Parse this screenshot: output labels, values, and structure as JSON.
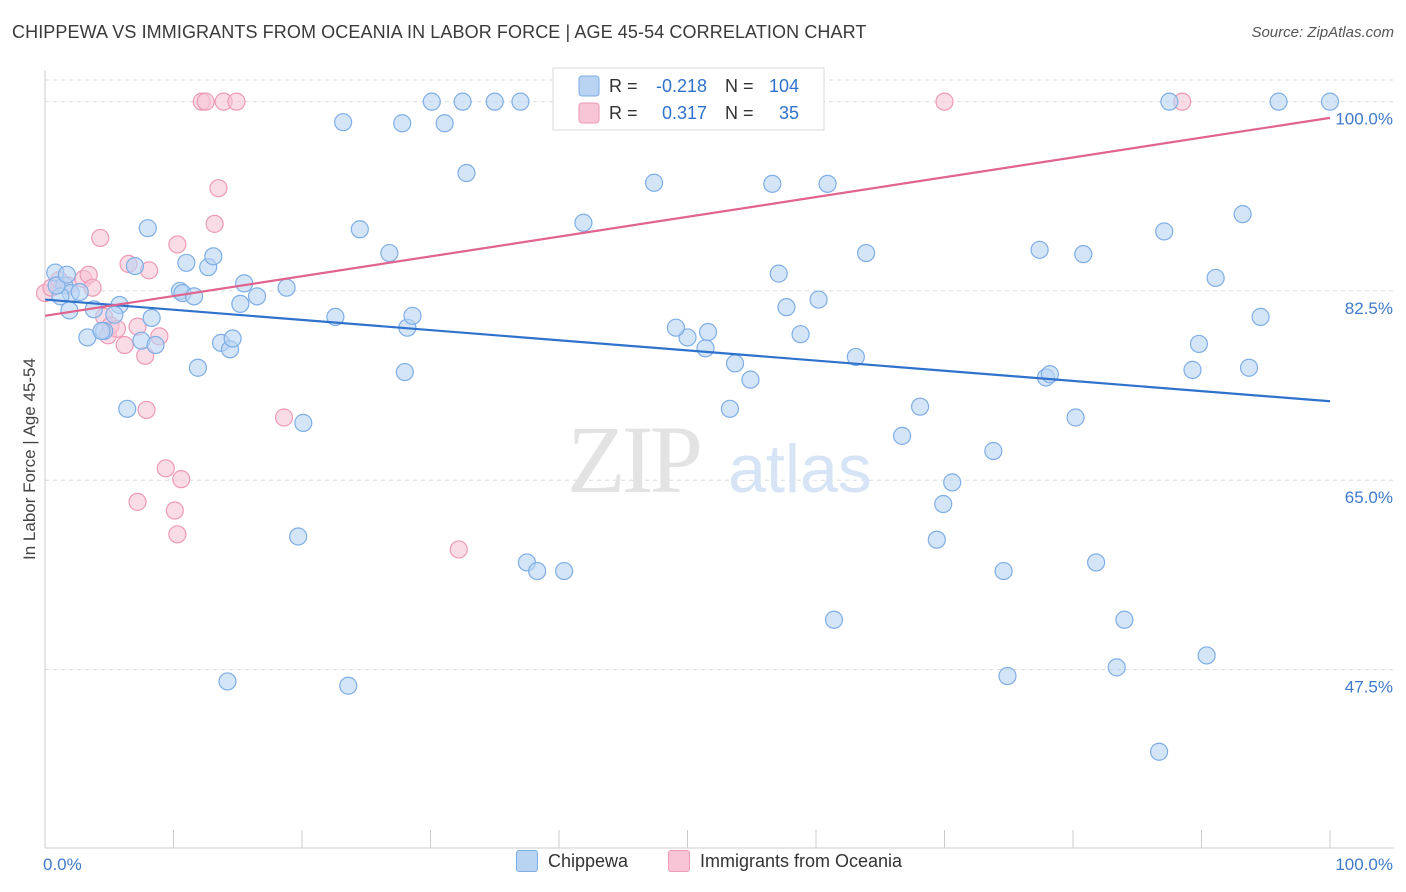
{
  "title": "CHIPPEWA VS IMMIGRANTS FROM OCEANIA IN LABOR FORCE | AGE 45-54 CORRELATION CHART",
  "source": "Source: ZipAtlas.com",
  "watermark": {
    "zip": "ZIP",
    "atlas": "atlas"
  },
  "colors": {
    "blue_fill": "#b9d3f3",
    "blue_stroke": "#7eaee6",
    "blue_line": "#2f72cc",
    "pink_fill": "#f7c5d5",
    "pink_stroke": "#ee9ab6",
    "pink_line": "#e0648e",
    "tick_label": "#3f7ac9",
    "grid": "#dcdcdc"
  },
  "stats_legend": {
    "rows": [
      {
        "r_label": "R =",
        "r_value": "-0.218",
        "n_label": "N =",
        "n_value": "104",
        "color": "blue"
      },
      {
        "r_label": "R =",
        "r_value": "0.317",
        "n_label": "N =",
        "n_value": "35",
        "color": "pink"
      }
    ]
  },
  "chart_data": {
    "type": "scatter",
    "title": "CHIPPEWA VS IMMIGRANTS FROM OCEANIA IN LABOR FORCE | AGE 45-54 CORRELATION CHART",
    "xlabel": "",
    "ylabel": "In Labor Force | Age 45-54",
    "xlim": [
      0,
      100
    ],
    "ylim": [
      31,
      102
    ],
    "x_tick_labels": [
      "0.0%",
      "100.0%"
    ],
    "y_ticks": [
      47.5,
      65.0,
      82.5,
      100.0
    ],
    "y_tick_labels": [
      "47.5%",
      "65.0%",
      "82.5%",
      "100.0%"
    ],
    "grid": true,
    "legend_position": "bottom",
    "series": [
      {
        "name": "Chippewa",
        "color": "blue",
        "trend": {
          "x": [
            0,
            100
          ],
          "y": [
            81.7,
            72.3
          ]
        },
        "points": [
          [
            0.8,
            84.2
          ],
          [
            1.5,
            83.0
          ],
          [
            2.0,
            82.3
          ],
          [
            1.2,
            82.0
          ],
          [
            2.7,
            82.4
          ],
          [
            1.9,
            80.7
          ],
          [
            3.8,
            80.8
          ],
          [
            5.8,
            81.2
          ],
          [
            5.4,
            80.3
          ],
          [
            8.3,
            80.0
          ],
          [
            3.3,
            78.2
          ],
          [
            4.6,
            78.8
          ],
          [
            4.4,
            78.8
          ],
          [
            7.5,
            77.9
          ],
          [
            8.6,
            77.5
          ],
          [
            11.0,
            85.1
          ],
          [
            12.7,
            84.7
          ],
          [
            13.1,
            85.7
          ],
          [
            7.0,
            84.8
          ],
          [
            8.0,
            88.3
          ],
          [
            10.5,
            82.5
          ],
          [
            10.7,
            82.3
          ],
          [
            11.6,
            82.0
          ],
          [
            15.5,
            83.2
          ],
          [
            16.5,
            82.0
          ],
          [
            18.8,
            82.8
          ],
          [
            15.2,
            81.3
          ],
          [
            13.7,
            77.7
          ],
          [
            14.4,
            77.1
          ],
          [
            14.6,
            78.1
          ],
          [
            11.9,
            75.4
          ],
          [
            6.4,
            71.6
          ],
          [
            19.7,
            59.8
          ],
          [
            14.2,
            46.4
          ],
          [
            20.1,
            70.3
          ],
          [
            22.6,
            80.1
          ],
          [
            24.5,
            88.2
          ],
          [
            26.8,
            86.0
          ],
          [
            28.0,
            75.0
          ],
          [
            28.2,
            79.1
          ],
          [
            28.6,
            80.2
          ],
          [
            27.8,
            98.0
          ],
          [
            30.1,
            100.0
          ],
          [
            31.1,
            98.0
          ],
          [
            32.5,
            100.0
          ],
          [
            35.0,
            100.0
          ],
          [
            37.0,
            100.0
          ],
          [
            41.0,
            100.0
          ],
          [
            46.0,
            100.0
          ],
          [
            51.0,
            100.0
          ],
          [
            32.8,
            93.4
          ],
          [
            37.5,
            57.4
          ],
          [
            38.3,
            56.6
          ],
          [
            40.4,
            56.6
          ],
          [
            23.2,
            98.1
          ],
          [
            23.6,
            46.0
          ],
          [
            41.9,
            88.8
          ],
          [
            47.4,
            92.5
          ],
          [
            50.0,
            78.2
          ],
          [
            49.1,
            79.1
          ],
          [
            51.4,
            77.2
          ],
          [
            51.6,
            78.7
          ],
          [
            53.7,
            75.8
          ],
          [
            53.3,
            71.6
          ],
          [
            54.9,
            74.3
          ],
          [
            56.6,
            92.4
          ],
          [
            57.1,
            84.1
          ],
          [
            57.7,
            81.0
          ],
          [
            58.8,
            78.5
          ],
          [
            60.2,
            81.7
          ],
          [
            60.9,
            92.4
          ],
          [
            61.4,
            52.1
          ],
          [
            63.1,
            76.4
          ],
          [
            63.9,
            86.0
          ],
          [
            66.7,
            69.1
          ],
          [
            68.1,
            71.8
          ],
          [
            69.4,
            59.5
          ],
          [
            69.9,
            62.8
          ],
          [
            70.6,
            64.8
          ],
          [
            73.8,
            67.7
          ],
          [
            74.6,
            56.6
          ],
          [
            74.9,
            46.9
          ],
          [
            77.4,
            86.3
          ],
          [
            77.9,
            74.5
          ],
          [
            78.2,
            74.8
          ],
          [
            80.2,
            70.8
          ],
          [
            80.8,
            85.9
          ],
          [
            81.8,
            57.4
          ],
          [
            83.4,
            47.7
          ],
          [
            84.0,
            52.1
          ],
          [
            86.7,
            39.9
          ],
          [
            87.1,
            88.0
          ],
          [
            89.3,
            75.2
          ],
          [
            89.8,
            77.6
          ],
          [
            90.4,
            48.8
          ],
          [
            91.1,
            83.7
          ],
          [
            93.2,
            89.6
          ],
          [
            93.7,
            75.4
          ],
          [
            94.6,
            80.1
          ],
          [
            87.5,
            100.0
          ],
          [
            96.0,
            100.0
          ],
          [
            100.0,
            100.0
          ],
          [
            0.9,
            83.0
          ],
          [
            1.7,
            84.0
          ]
        ]
      },
      {
        "name": "Immigrants from Oceania",
        "color": "pink",
        "trend": {
          "x": [
            0,
            100
          ],
          "y": [
            80.2,
            98.5
          ]
        },
        "points": [
          [
            0.0,
            82.3
          ],
          [
            0.5,
            82.8
          ],
          [
            1.1,
            83.5
          ],
          [
            1.8,
            83.0
          ],
          [
            3.0,
            83.6
          ],
          [
            3.4,
            84.0
          ],
          [
            3.7,
            82.8
          ],
          [
            4.3,
            87.4
          ],
          [
            4.9,
            78.4
          ],
          [
            4.6,
            80.1
          ],
          [
            5.1,
            79.3
          ],
          [
            5.6,
            79.0
          ],
          [
            6.2,
            77.5
          ],
          [
            7.2,
            79.2
          ],
          [
            6.5,
            85.0
          ],
          [
            8.1,
            84.4
          ],
          [
            7.8,
            76.5
          ],
          [
            8.9,
            78.3
          ],
          [
            10.3,
            86.8
          ],
          [
            13.2,
            88.7
          ],
          [
            13.5,
            92.0
          ],
          [
            12.2,
            100.0
          ],
          [
            12.5,
            100.0
          ],
          [
            13.9,
            100.0
          ],
          [
            14.9,
            100.0
          ],
          [
            7.9,
            71.5
          ],
          [
            9.4,
            66.1
          ],
          [
            10.6,
            65.1
          ],
          [
            7.2,
            63.0
          ],
          [
            10.1,
            62.2
          ],
          [
            10.3,
            60.0
          ],
          [
            18.6,
            70.8
          ],
          [
            32.2,
            58.6
          ],
          [
            70.0,
            100.0
          ],
          [
            88.5,
            100.0
          ]
        ]
      }
    ]
  },
  "bottom_legend": [
    {
      "label": "Chippewa",
      "color": "blue"
    },
    {
      "label": "Immigrants from Oceania",
      "color": "pink"
    }
  ]
}
